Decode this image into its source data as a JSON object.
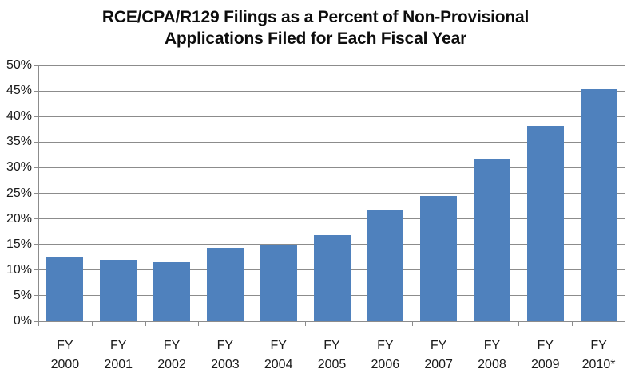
{
  "chart_data": {
    "type": "bar",
    "title": "RCE/CPA/R129 Filings as a Percent of Non-Provisional Applications Filed for Each Fiscal Year",
    "title_lines": [
      "RCE/CPA/R129 Filings as a Percent of Non-Provisional",
      "Applications Filed for Each Fiscal Year"
    ],
    "categories": [
      "FY 2000",
      "FY 2001",
      "FY 2002",
      "FY 2003",
      "FY 2004",
      "FY 2005",
      "FY 2006",
      "FY 2007",
      "FY 2008",
      "FY 2009",
      "FY 2010*"
    ],
    "values": [
      12.4,
      12.0,
      11.6,
      14.4,
      15.0,
      16.9,
      21.7,
      24.5,
      31.8,
      38.2,
      45.3
    ],
    "xlabel": "",
    "ylabel": "",
    "ylim": [
      0,
      50
    ],
    "ytick_step": 5,
    "ytick_labels": [
      "0%",
      "5%",
      "10%",
      "15%",
      "20%",
      "25%",
      "30%",
      "35%",
      "40%",
      "45%",
      "50%"
    ],
    "grid": true,
    "legend": "none",
    "bar_color": "#4f81bd",
    "gridline_color": "#8c8c8c",
    "axis_color": "#8c8c8c",
    "label_color": "#1a1a1a",
    "title_color": "#0d0d0d"
  }
}
